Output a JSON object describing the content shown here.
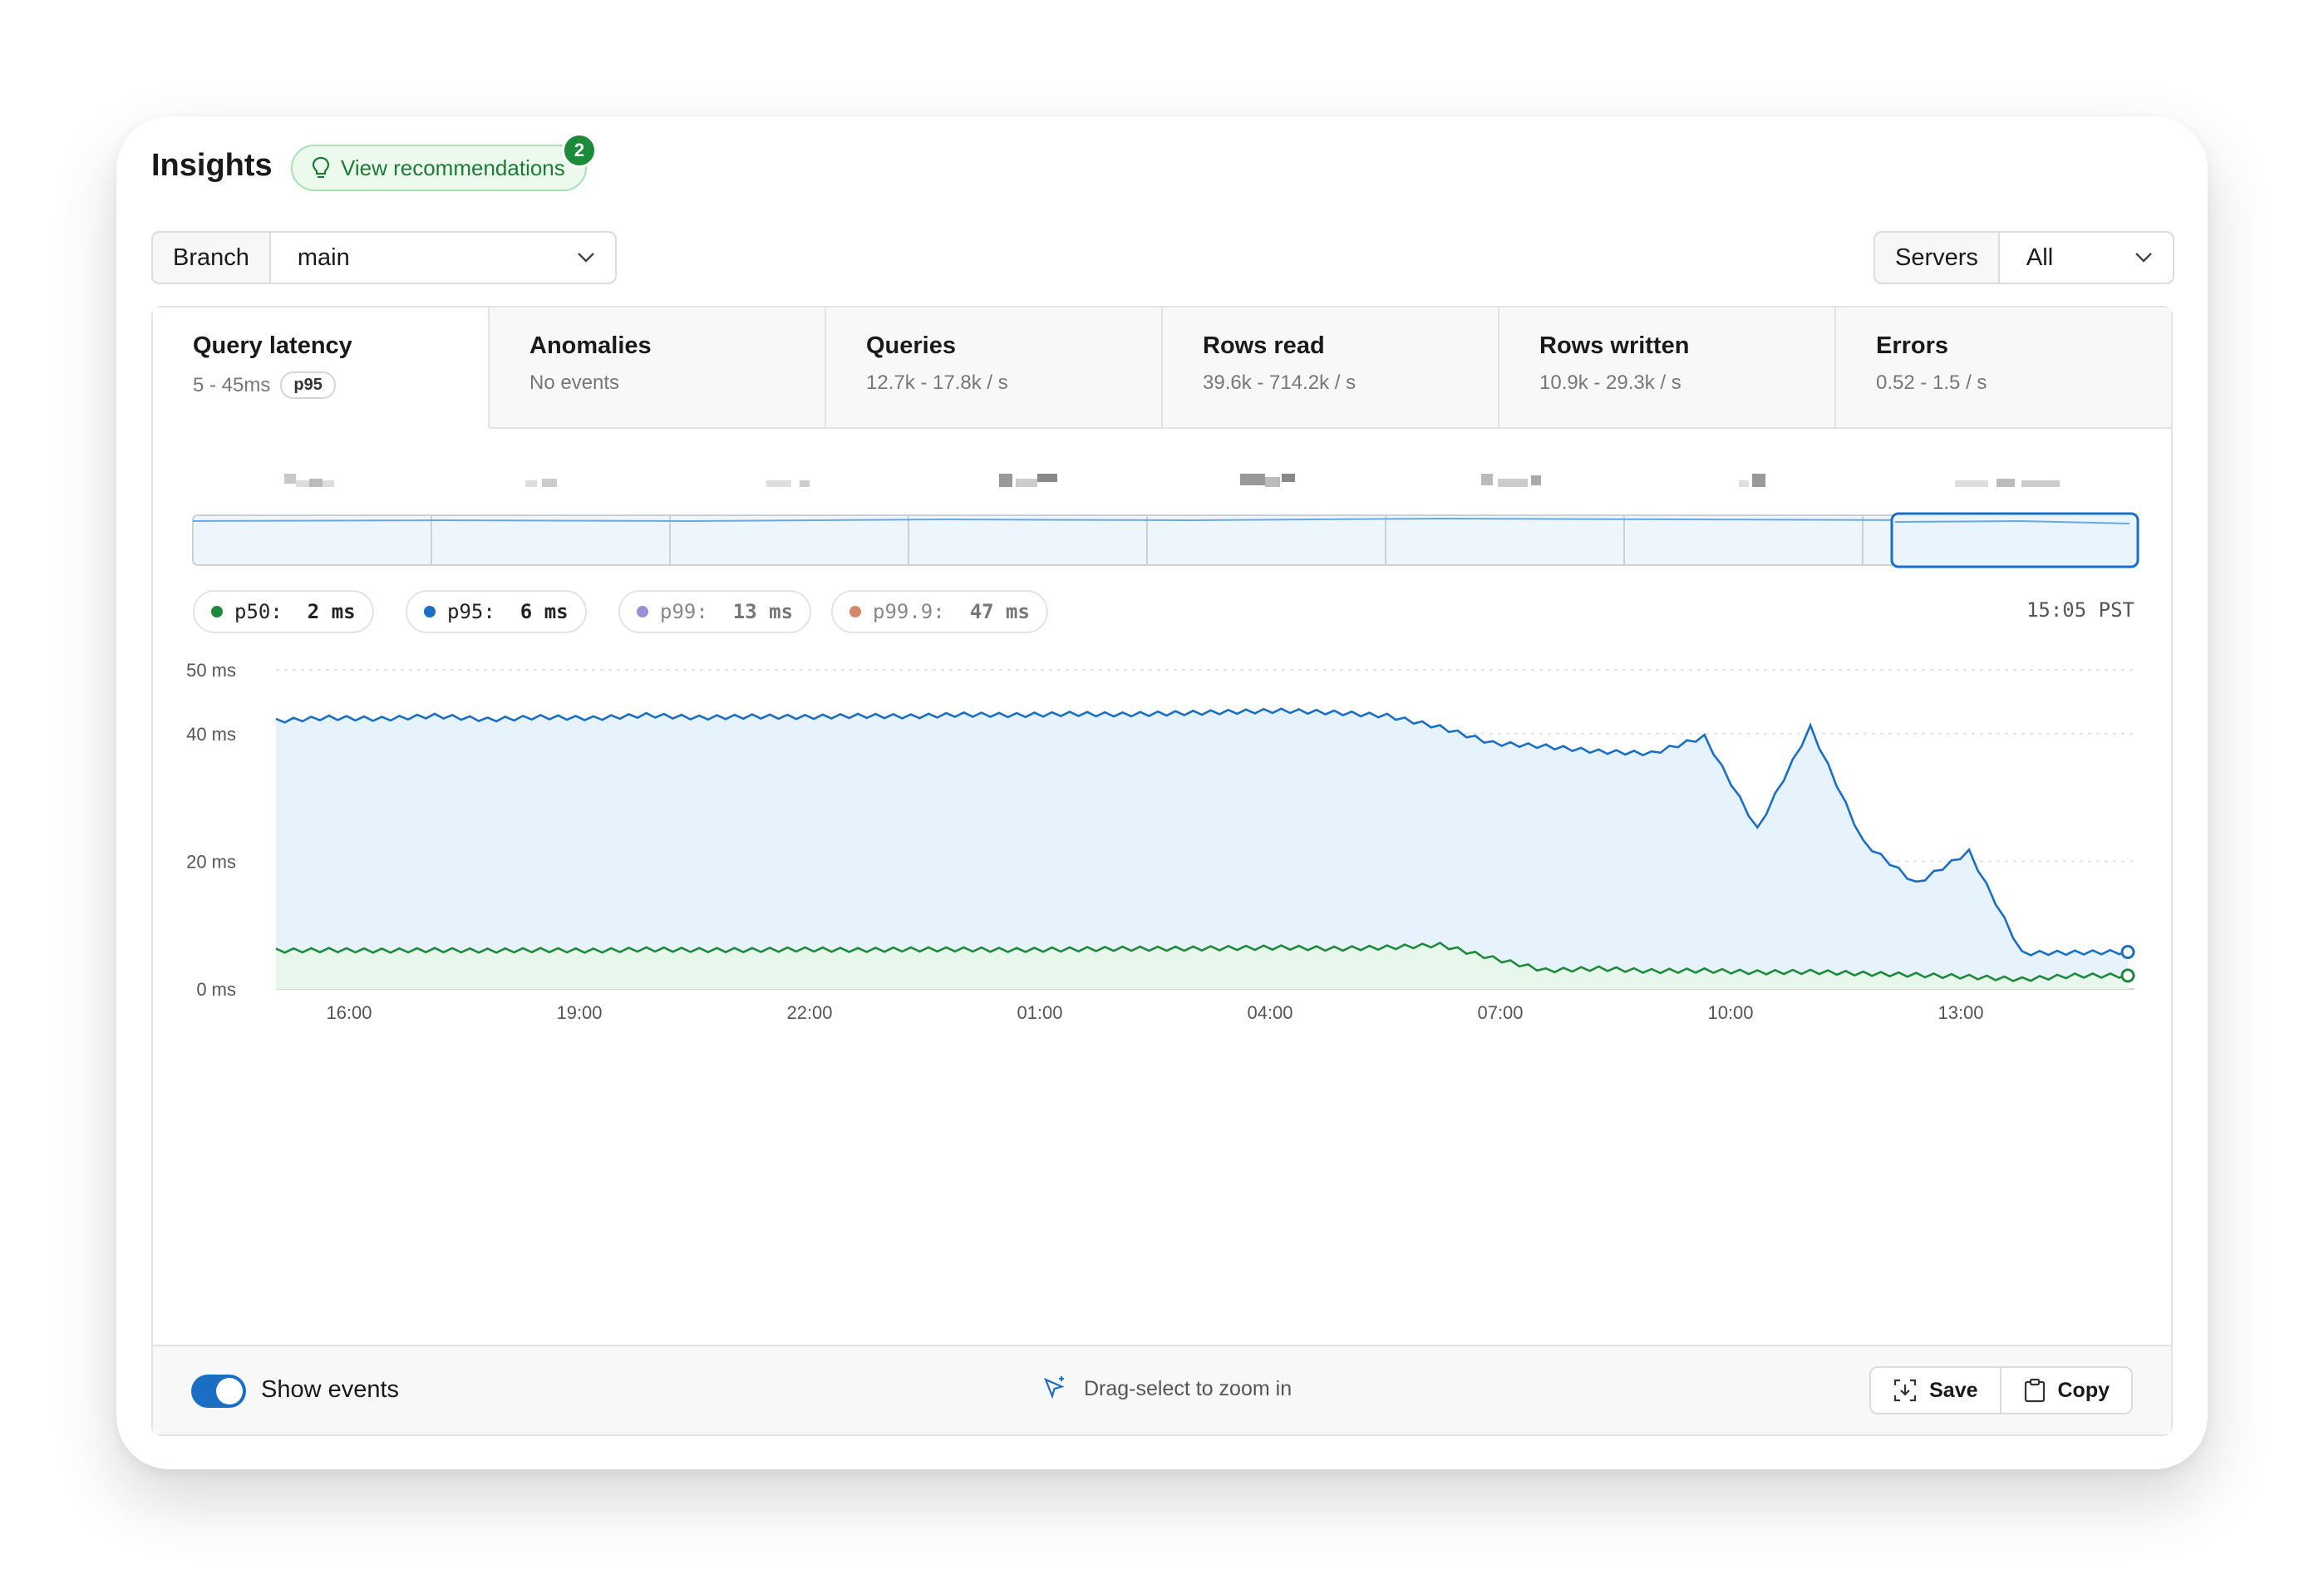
{
  "header": {
    "title": "Insights",
    "recommendations_label": "View recommendations",
    "recommendations_count": "2"
  },
  "filters": {
    "branch_label": "Branch",
    "branch_value": "main",
    "servers_label": "Servers",
    "servers_value": "All"
  },
  "tabs": [
    {
      "title": "Query latency",
      "sub": "5 - 45ms",
      "badge": "p95",
      "active": true
    },
    {
      "title": "Anomalies",
      "sub": "No events"
    },
    {
      "title": "Queries",
      "sub": "12.7k - 17.8k / s"
    },
    {
      "title": "Rows read",
      "sub": "39.6k - 714.2k / s"
    },
    {
      "title": "Rows written",
      "sub": "10.9k - 29.3k / s"
    },
    {
      "title": "Errors",
      "sub": "0.52 - 1.5 / s"
    }
  ],
  "legend": [
    {
      "label": "p50:",
      "value": "2 ms",
      "color": "#1d8a3a",
      "muted": false
    },
    {
      "label": "p95:",
      "value": "6 ms",
      "color": "#1a6fc4",
      "muted": false
    },
    {
      "label": "p99:",
      "value": "13 ms",
      "color": "#9b8fd4",
      "muted": true
    },
    {
      "label": "p99.9:",
      "value": "47 ms",
      "color": "#d4876a",
      "muted": true
    }
  ],
  "time_readout": "15:05 PST",
  "chart_data": {
    "type": "line",
    "ylabel_ticks": [
      "0 ms",
      "20 ms",
      "40 ms",
      "50 ms"
    ],
    "ylim": [
      0,
      50
    ],
    "x_ticks": [
      "16:00",
      "19:00",
      "22:00",
      "01:00",
      "04:00",
      "07:00",
      "10:00",
      "13:00"
    ],
    "series": [
      {
        "name": "p95",
        "color": "#1a6fc4",
        "fill": "#e3f1fc",
        "values": [
          42,
          42.5,
          42.3,
          42.8,
          42.2,
          42.6,
          42.4,
          42.9,
          42.5,
          42.7,
          42.6,
          42.8,
          42.7,
          43,
          42.9,
          43.1,
          43,
          43.2,
          43.4,
          43.6,
          43.3,
          42.8,
          41,
          38.5,
          38,
          37.2,
          36.9,
          39.5,
          25,
          41,
          23,
          16.5,
          21.5,
          5.6,
          5.7,
          5.8
        ]
      },
      {
        "name": "p50",
        "color": "#1d8a3a",
        "fill": "#e6f7e9",
        "values": [
          6,
          6.1,
          6,
          6.1,
          6,
          6.1,
          6,
          6.2,
          6.1,
          6.1,
          6.2,
          6.1,
          6.2,
          6.2,
          6.1,
          6.2,
          6.3,
          6.3,
          6.4,
          6.5,
          6.3,
          6.5,
          6.9,
          4.8,
          2.9,
          3.2,
          2.8,
          2.9,
          2.6,
          2.7,
          2.4,
          2.2,
          1.9,
          1.5,
          2.1,
          2.1
        ]
      }
    ]
  },
  "footer": {
    "toggle_label": "Show events",
    "hint": "Drag-select to zoom in",
    "save_label": "Save",
    "copy_label": "Copy"
  }
}
